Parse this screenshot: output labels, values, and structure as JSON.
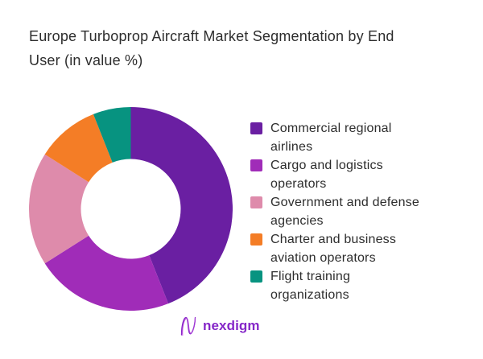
{
  "page": {
    "background": "#ffffff"
  },
  "title": {
    "text": "Europe Turboprop Aircraft Market Segmentation by End User (in value %)",
    "lines": [
      "Europe Turboprop Aircraft Market Segmentation by End",
      "User (in value %)"
    ]
  },
  "chart_data": {
    "type": "pie",
    "subtype": "donut",
    "title": "Europe Turboprop Aircraft Market Segmentation by End User (in value %)",
    "unit": "% of market value",
    "direction": "clockwise",
    "start_angle_deg": 0,
    "inner_radius_ratio": 0.49,
    "legend_position": "right",
    "data_labels_shown": false,
    "labels": [
      "Commercial regional airlines",
      "Cargo and logistics operators",
      "Government and defense agencies",
      "Charter and business aviation operators",
      "Flight training organizations"
    ],
    "values": [
      44,
      22,
      18,
      10,
      6
    ],
    "colors": [
      "#6A1FA2",
      "#A02CB8",
      "#DE8BAB",
      "#F47D26",
      "#079380"
    ]
  },
  "legend": {
    "items": [
      {
        "label": "Commercial regional airlines",
        "color": "#6A1FA2",
        "lines": [
          "Commercial regional",
          "airlines"
        ]
      },
      {
        "label": "Cargo and logistics operators",
        "color": "#A02CB8",
        "lines": [
          "Cargo and logistics",
          "operators"
        ]
      },
      {
        "label": "Government and defense agencies",
        "color": "#DE8BAB",
        "lines": [
          "Government and defense",
          "agencies"
        ]
      },
      {
        "label": "Charter and business aviation operators",
        "color": "#F47D26",
        "lines": [
          "Charter and business",
          "aviation operators"
        ]
      },
      {
        "label": "Flight training organizations",
        "color": "#079380",
        "lines": [
          "Flight training",
          "organizations"
        ]
      }
    ]
  },
  "logo": {
    "text": "nexdigm",
    "color": "#8526C8",
    "mark_colors": [
      "#7F1FC0",
      "#C44BE0",
      "#9B3BD6"
    ]
  }
}
